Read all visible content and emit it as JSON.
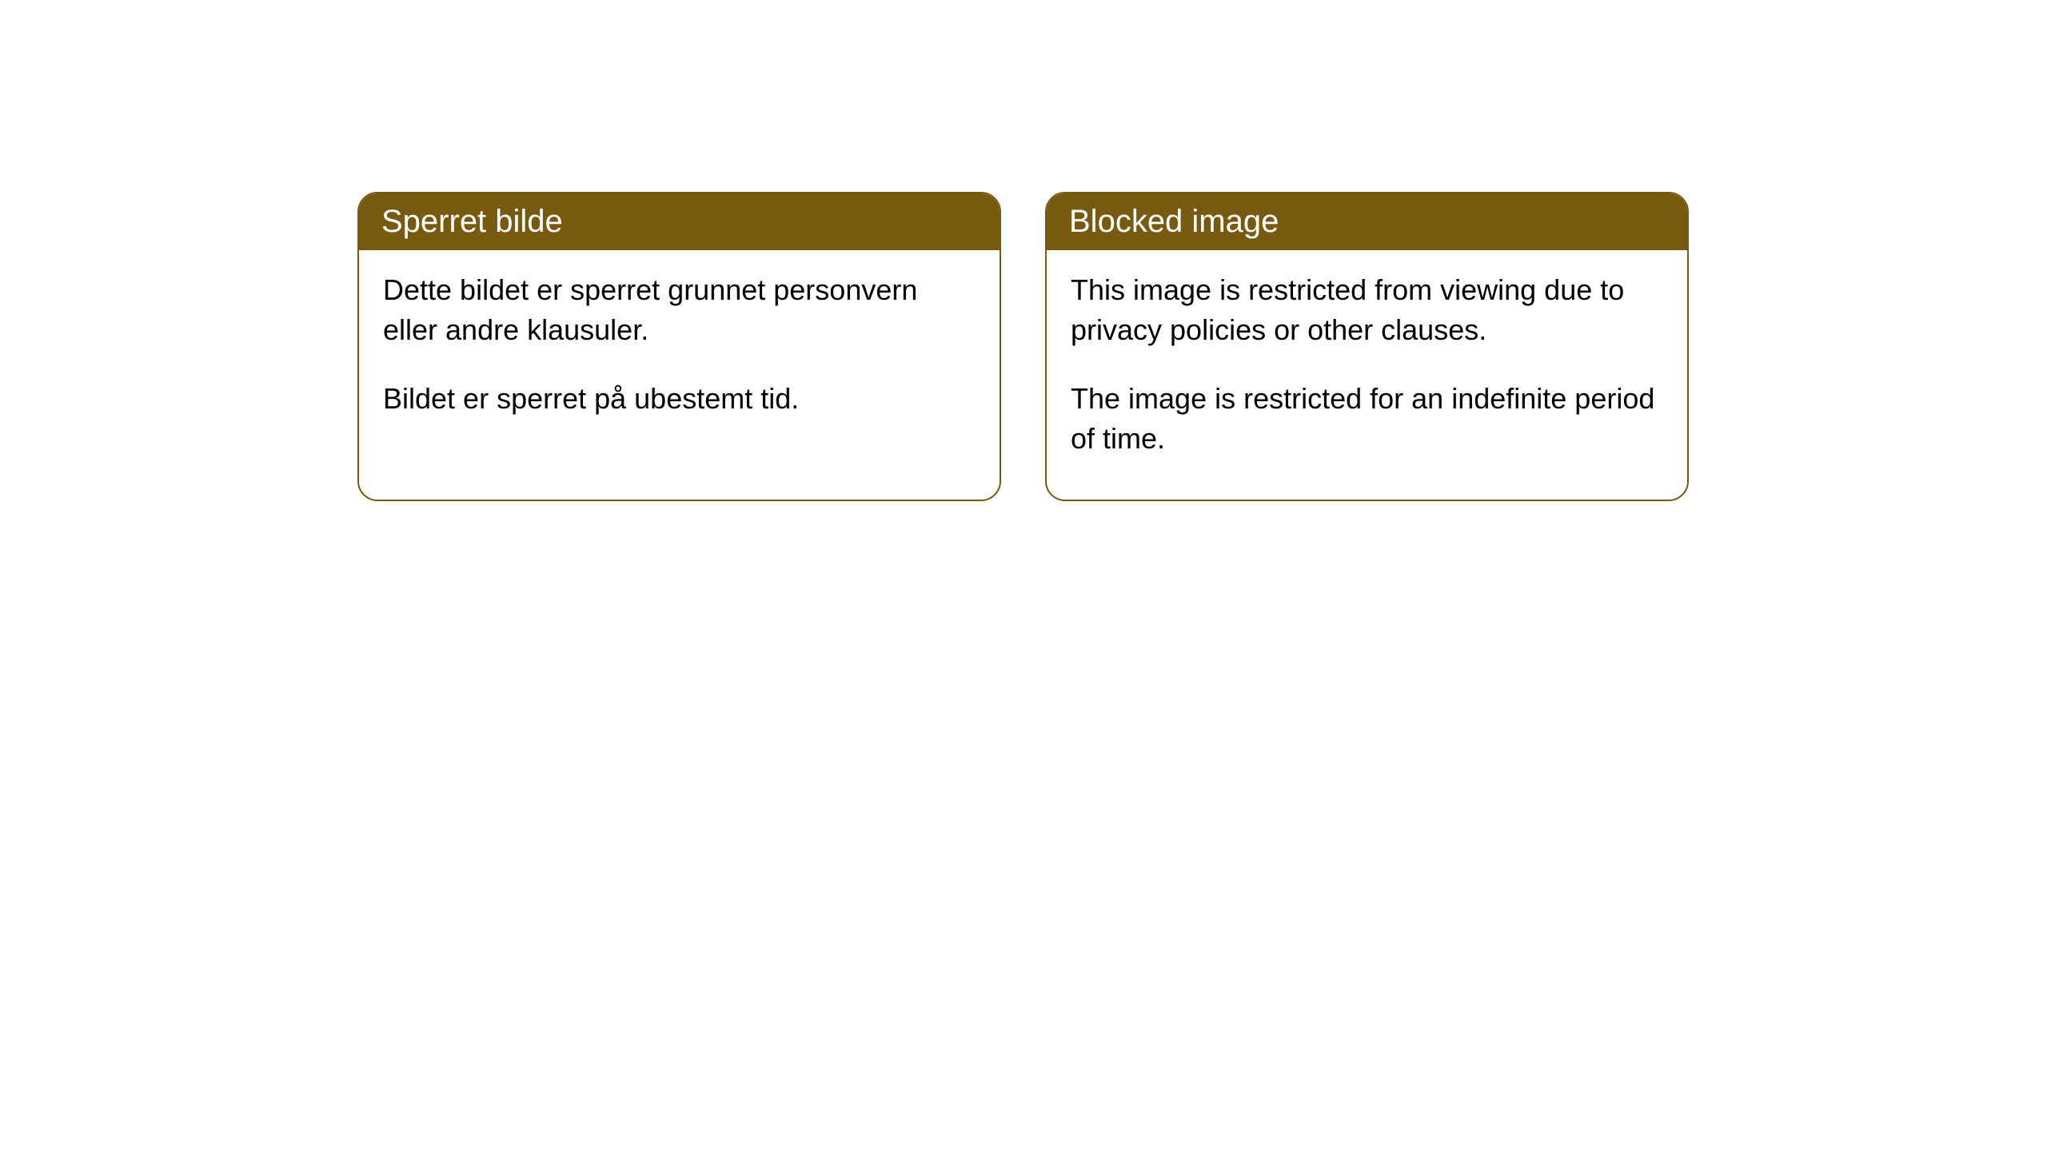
{
  "cards": [
    {
      "title": "Sperret bilde",
      "paragraph1": "Dette bildet er sperret grunnet personvern eller andre klausuler.",
      "paragraph2": "Bildet er sperret på ubestemt tid."
    },
    {
      "title": "Blocked image",
      "paragraph1": "This image is restricted from viewing due to privacy policies or other clauses.",
      "paragraph2": "The image is restricted for an indefinite period of time."
    }
  ],
  "styling": {
    "header_bg_color": "#785910",
    "header_text_color": "#ffffff",
    "border_color": "#785910",
    "body_bg_color": "#ffffff",
    "body_text_color": "#000000",
    "border_radius": 25,
    "header_fontsize": 40,
    "body_fontsize": 36
  }
}
